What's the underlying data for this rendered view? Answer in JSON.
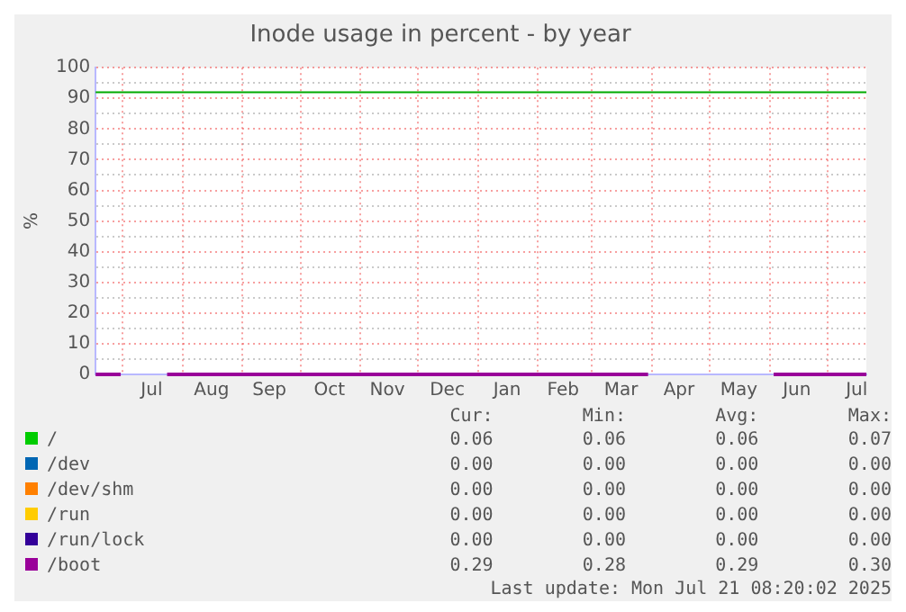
{
  "chart_data": {
    "type": "line",
    "title": "Inode usage in percent - by year",
    "ylabel": "%",
    "x": [
      "2024-06-17",
      "2024-06-30",
      "2024-07-10",
      "2024-07-24",
      "2025-03-30",
      "2025-04-30",
      "2025-06-03",
      "2025-07-21"
    ],
    "xlim": [
      "2024-06-17",
      "2025-07-21"
    ],
    "xticks": [
      {
        "value": "2024-07-01",
        "label": null
      },
      {
        "value": "2024-07-16",
        "label": "Jul"
      },
      {
        "value": "2024-08-01",
        "label": null
      },
      {
        "value": "2024-08-16",
        "label": "Aug"
      },
      {
        "value": "2024-09-01",
        "label": null
      },
      {
        "value": "2024-09-15",
        "label": "Sep"
      },
      {
        "value": "2024-10-01",
        "label": null
      },
      {
        "value": "2024-10-16",
        "label": "Oct"
      },
      {
        "value": "2024-11-01",
        "label": null
      },
      {
        "value": "2024-11-15",
        "label": "Nov"
      },
      {
        "value": "2024-12-01",
        "label": null
      },
      {
        "value": "2024-12-16",
        "label": "Dec"
      },
      {
        "value": "2025-01-01",
        "label": null
      },
      {
        "value": "2025-01-16",
        "label": "Jan"
      },
      {
        "value": "2025-02-01",
        "label": null
      },
      {
        "value": "2025-02-14",
        "label": "Feb"
      },
      {
        "value": "2025-03-01",
        "label": null
      },
      {
        "value": "2025-03-16",
        "label": "Mar"
      },
      {
        "value": "2025-04-01",
        "label": null
      },
      {
        "value": "2025-04-15",
        "label": "Apr"
      },
      {
        "value": "2025-05-01",
        "label": null
      },
      {
        "value": "2025-05-16",
        "label": "May"
      },
      {
        "value": "2025-06-01",
        "label": null
      },
      {
        "value": "2025-06-15",
        "label": "Jun"
      },
      {
        "value": "2025-07-01",
        "label": null
      },
      {
        "value": "2025-07-16",
        "label": "Jul"
      }
    ],
    "ylim": [
      0,
      100
    ],
    "yticks": [
      0,
      {
        "value": 5,
        "label": null
      },
      10,
      {
        "value": 15,
        "label": null
      },
      20,
      {
        "value": 25,
        "label": null
      },
      30,
      {
        "value": 35,
        "label": null
      },
      40,
      {
        "value": 45,
        "label": null
      },
      50,
      {
        "value": 55,
        "label": null
      },
      60,
      {
        "value": 65,
        "label": null
      },
      70,
      {
        "value": 75,
        "label": null
      },
      80,
      {
        "value": 85,
        "label": null
      },
      90,
      {
        "value": 95,
        "label": null
      },
      100
    ],
    "grid": true,
    "legend": "bottom",
    "marker": "none",
    "line_style": "solid",
    "ref_lines": [
      {
        "axis": "y",
        "value": 92,
        "color": "#00aa00"
      }
    ],
    "series": [
      {
        "name": "/",
        "color": "#00cc00",
        "values": [
          null,
          null,
          null,
          null,
          null,
          null,
          null,
          null
        ]
      },
      {
        "name": "/dev",
        "color": "#0066b3",
        "values": [
          null,
          null,
          null,
          null,
          null,
          null,
          null,
          null
        ]
      },
      {
        "name": "/dev/shm",
        "color": "#ff8000",
        "values": [
          null,
          null,
          null,
          null,
          null,
          null,
          null,
          null
        ]
      },
      {
        "name": "/run",
        "color": "#ffcc00",
        "values": [
          null,
          null,
          null,
          null,
          null,
          null,
          null,
          null
        ]
      },
      {
        "name": "/run/lock",
        "color": "#330099",
        "values": [
          null,
          null,
          null,
          null,
          null,
          null,
          null,
          null
        ]
      },
      {
        "name": "/boot",
        "color": "#990099",
        "values": [
          0,
          0,
          null,
          0,
          0,
          null,
          0,
          0
        ]
      }
    ],
    "annotations": [
      "Cur:",
      "Min:",
      "Avg:",
      "Max:",
      "0.06",
      "0.06",
      "0.06",
      "0.07",
      "0.00",
      "0.00",
      "0.00",
      "0.00",
      "0.00",
      "0.00",
      "0.00",
      "0.00",
      "0.00",
      "0.00",
      "0.00",
      "0.00",
      "0.00",
      "0.00",
      "0.00",
      "0.00",
      "0.29",
      "0.28",
      "0.29",
      "0.30",
      "Last update: Mon Jul 21 08:20:02 2025"
    ]
  }
}
